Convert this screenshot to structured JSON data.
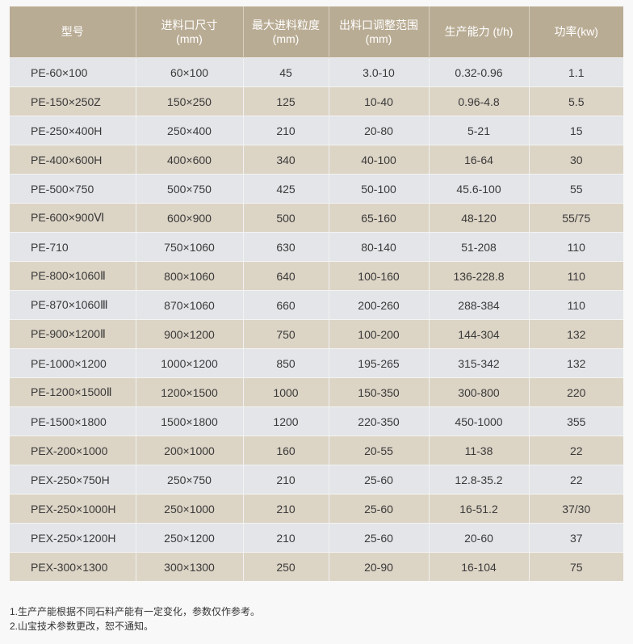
{
  "table": {
    "headers": [
      [
        "型号",
        ""
      ],
      [
        "进料口尺寸",
        "(mm)"
      ],
      [
        "最大进料粒度",
        "(mm)"
      ],
      [
        "出料口调整范围",
        "(mm)"
      ],
      [
        "生产能力 (t/h)",
        ""
      ],
      [
        "功率(kw)",
        ""
      ]
    ],
    "rows": [
      [
        "PE-60×100",
        "60×100",
        "45",
        "3.0-10",
        "0.32-0.96",
        "1.1"
      ],
      [
        "PE-150×250Z",
        "150×250",
        "125",
        "10-40",
        "0.96-4.8",
        "5.5"
      ],
      [
        "PE-250×400H",
        "250×400",
        "210",
        "20-80",
        "5-21",
        "15"
      ],
      [
        "PE-400×600H",
        "400×600",
        "340",
        "40-100",
        "16-64",
        "30"
      ],
      [
        "PE-500×750",
        "500×750",
        "425",
        "50-100",
        "45.6-100",
        "55"
      ],
      [
        "PE-600×900Ⅵ",
        "600×900",
        "500",
        "65-160",
        "48-120",
        "55/75"
      ],
      [
        "PE-710",
        "750×1060",
        "630",
        "80-140",
        "51-208",
        "110"
      ],
      [
        "PE-800×1060Ⅱ",
        "800×1060",
        "640",
        "100-160",
        "136-228.8",
        "110"
      ],
      [
        "PE-870×1060Ⅲ",
        "870×1060",
        "660",
        "200-260",
        "288-384",
        "110"
      ],
      [
        "PE-900×1200Ⅱ",
        "900×1200",
        "750",
        "100-200",
        "144-304",
        "132"
      ],
      [
        "PE-1000×1200",
        "1000×1200",
        "850",
        "195-265",
        "315-342",
        "132"
      ],
      [
        "PE-1200×1500Ⅱ",
        "1200×1500",
        "1000",
        "150-350",
        "300-800",
        "220"
      ],
      [
        "PE-1500×1800",
        "1500×1800",
        "1200",
        "220-350",
        "450-1000",
        "355"
      ],
      [
        "PEX-200×1000",
        "200×1000",
        "160",
        "20-55",
        "11-38",
        "22"
      ],
      [
        "PEX-250×750H",
        "250×750",
        "210",
        "25-60",
        "12.8-35.2",
        "22"
      ],
      [
        "PEX-250×1000H",
        "250×1000",
        "210",
        "25-60",
        "16-51.2",
        "37/30"
      ],
      [
        "PEX-250×1200H",
        "250×1200",
        "210",
        "25-60",
        "20-60",
        "37"
      ],
      [
        "PEX-300×1300",
        "300×1300",
        "250",
        "20-90",
        "16-104",
        "75"
      ]
    ]
  },
  "notes": [
    "1.生产产能根据不同石料产能有一定变化，参数仅作参考。",
    "2.山宝技术参数更改，恕不通知。"
  ],
  "colors": {
    "header": "#b9ac94",
    "row_odd": "#e3e5e8",
    "row_even": "#dcd4c5"
  }
}
